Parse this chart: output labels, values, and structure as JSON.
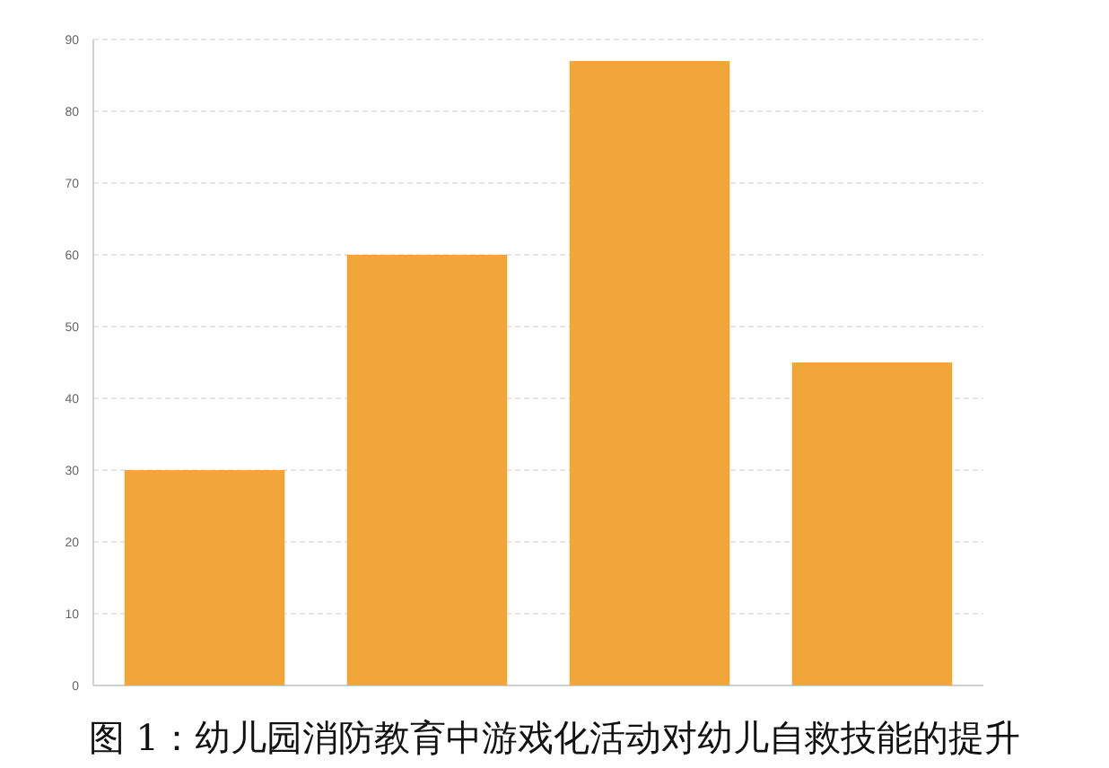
{
  "chart_data": {
    "type": "bar",
    "categories": [
      null,
      null,
      null,
      null
    ],
    "values": [
      30,
      60,
      87,
      45
    ],
    "color": "#f2a53a",
    "ylim": [
      0,
      90
    ],
    "yticks": [
      0,
      10,
      20,
      30,
      40,
      50,
      60,
      70,
      80,
      90
    ],
    "grid": "y",
    "annotations": [
      "图 1：幼儿园消防教育中游戏化活动对幼儿自救技能的提升"
    ]
  }
}
